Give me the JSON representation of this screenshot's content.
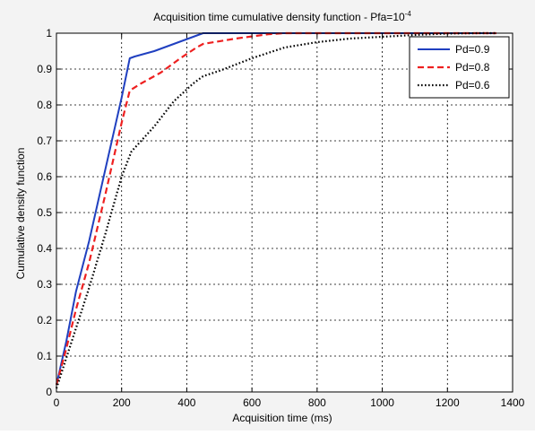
{
  "chart_data": {
    "type": "line",
    "title": "Acquisition time cumulative density function - Pfa=10",
    "title_sup": "-4",
    "xlabel": "Acquisition time (ms)",
    "ylabel": "Cumulative density function",
    "xlim": [
      0,
      1400
    ],
    "ylim": [
      0,
      1
    ],
    "xticks": [
      0,
      200,
      400,
      600,
      800,
      1000,
      1200,
      1400
    ],
    "yticks": [
      0,
      0.1,
      0.2,
      0.3,
      0.4,
      0.5,
      0.6,
      0.7,
      0.8,
      0.9,
      1
    ],
    "xtick_labels": [
      "0",
      "200",
      "400",
      "600",
      "800",
      "1000",
      "1200",
      "1400"
    ],
    "ytick_labels": [
      "0",
      "0.1",
      "0.2",
      "0.3",
      "0.4",
      "0.5",
      "0.6",
      "0.7",
      "0.8",
      "0.9",
      "1"
    ],
    "grid": true,
    "legend_position": "top-right",
    "series": [
      {
        "name": "Pd=0.9",
        "color": "#2040c0",
        "dash": "solid",
        "points": [
          [
            0,
            0.02
          ],
          [
            30,
            0.14
          ],
          [
            60,
            0.28
          ],
          [
            100,
            0.42
          ],
          [
            150,
            0.62
          ],
          [
            200,
            0.82
          ],
          [
            225,
            0.93
          ],
          [
            240,
            0.935
          ],
          [
            300,
            0.95
          ],
          [
            360,
            0.97
          ],
          [
            420,
            0.99
          ],
          [
            450,
            1.0
          ],
          [
            600,
            1.0
          ],
          [
            800,
            1.0
          ],
          [
            1000,
            1.0
          ],
          [
            1200,
            1.0
          ],
          [
            1350,
            1.0
          ]
        ]
      },
      {
        "name": "Pd=0.8",
        "color": "#ee2020",
        "dash": "dashed",
        "points": [
          [
            0,
            0.02
          ],
          [
            30,
            0.12
          ],
          [
            60,
            0.23
          ],
          [
            100,
            0.36
          ],
          [
            150,
            0.55
          ],
          [
            200,
            0.75
          ],
          [
            225,
            0.84
          ],
          [
            260,
            0.86
          ],
          [
            320,
            0.89
          ],
          [
            380,
            0.93
          ],
          [
            430,
            0.96
          ],
          [
            450,
            0.97
          ],
          [
            550,
            0.985
          ],
          [
            650,
            0.997
          ],
          [
            700,
            1.0
          ],
          [
            900,
            1.0
          ],
          [
            1100,
            1.0
          ],
          [
            1350,
            1.0
          ]
        ]
      },
      {
        "name": "Pd=0.6",
        "color": "#000000",
        "dash": "dotted",
        "points": [
          [
            0,
            0.01
          ],
          [
            50,
            0.15
          ],
          [
            100,
            0.29
          ],
          [
            150,
            0.44
          ],
          [
            200,
            0.6
          ],
          [
            230,
            0.67
          ],
          [
            260,
            0.7
          ],
          [
            300,
            0.74
          ],
          [
            360,
            0.81
          ],
          [
            420,
            0.86
          ],
          [
            450,
            0.88
          ],
          [
            500,
            0.895
          ],
          [
            600,
            0.93
          ],
          [
            700,
            0.96
          ],
          [
            800,
            0.975
          ],
          [
            900,
            0.985
          ],
          [
            1000,
            0.99
          ],
          [
            1100,
            0.995
          ],
          [
            1200,
            0.999
          ],
          [
            1300,
            1.0
          ],
          [
            1350,
            1.0
          ]
        ]
      }
    ]
  }
}
